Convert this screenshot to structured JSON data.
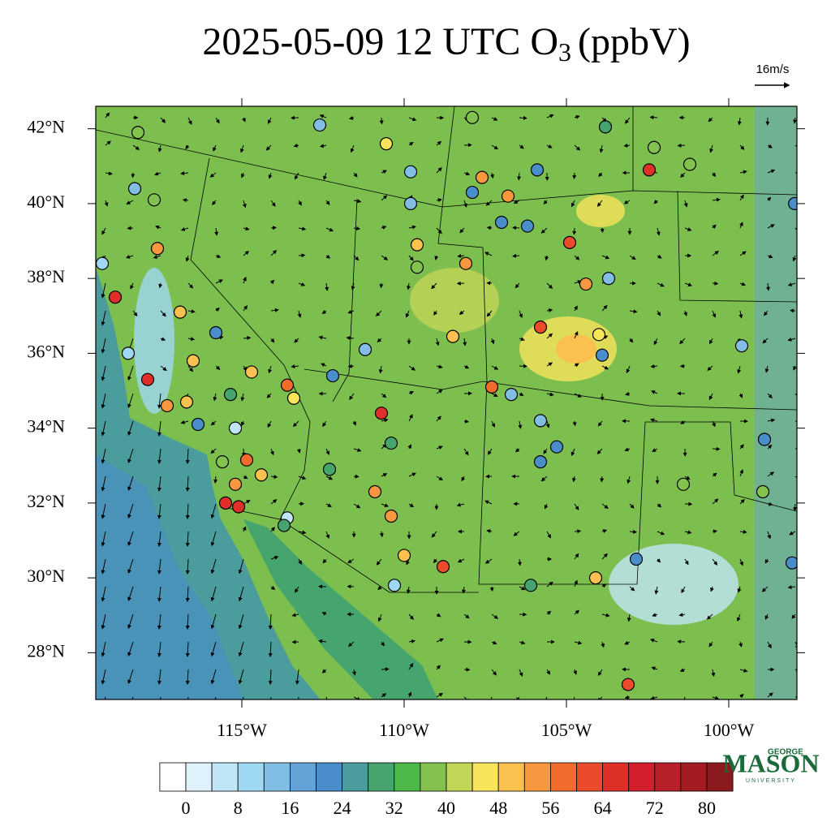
{
  "map": {
    "title": {
      "main": "2025-05-09 12 UTC O",
      "subscript": "3",
      "units": "(ppbV)"
    },
    "wind_reference": "16m/s",
    "lonlim": [
      -119.5,
      -97.9
    ],
    "latlim": [
      26.75,
      42.6
    ],
    "lonticks": [
      {
        "value": -115,
        "label": "115°W"
      },
      {
        "value": -110,
        "label": "110°W"
      },
      {
        "value": -105,
        "label": "105°W"
      },
      {
        "value": -100,
        "label": "100°W"
      }
    ],
    "latticks": [
      {
        "value": 28,
        "label": "28°N"
      },
      {
        "value": 30,
        "label": "30°N"
      },
      {
        "value": 32,
        "label": "32°N"
      },
      {
        "value": 34,
        "label": "34°N"
      },
      {
        "value": 36,
        "label": "36°N"
      },
      {
        "value": 38,
        "label": "38°N"
      },
      {
        "value": 40,
        "label": "40°N"
      },
      {
        "value": 42,
        "label": "42°N"
      }
    ],
    "colorbar": {
      "ticks": [
        0,
        8,
        16,
        24,
        32,
        40,
        48,
        56,
        64,
        72,
        80
      ],
      "colors": [
        "#ffffff",
        "#dff2fb",
        "#bfe6f7",
        "#9fd8f3",
        "#82bde4",
        "#64a3d8",
        "#4a8dcb",
        "#4b9c9c",
        "#46a46e",
        "#4cb848",
        "#84c250",
        "#c2d556",
        "#f7e45b",
        "#fac150",
        "#f7973f",
        "#f26b2d",
        "#e94b2b",
        "#de3028",
        "#d21f2b",
        "#b8202a",
        "#a31c22",
        "#8b1a1f"
      ]
    },
    "stations": [
      {
        "lon": -118.2,
        "lat": 41.9,
        "value": 36
      },
      {
        "lon": -112.6,
        "lat": 42.1,
        "value": 12
      },
      {
        "lon": -110.55,
        "lat": 41.6,
        "value": 44
      },
      {
        "lon": -107.9,
        "lat": 42.3,
        "value": 38
      },
      {
        "lon": -102.3,
        "lat": 41.5,
        "value": 38
      },
      {
        "lon": -102.45,
        "lat": 40.9,
        "value": 66
      },
      {
        "lon": -101.2,
        "lat": 41.05,
        "value": 38
      },
      {
        "lon": -103.8,
        "lat": 42.05,
        "value": 28
      },
      {
        "lon": -107.6,
        "lat": 40.7,
        "value": 54
      },
      {
        "lon": -106.8,
        "lat": 40.2,
        "value": 54
      },
      {
        "lon": -107.9,
        "lat": 40.3,
        "value": 20
      },
      {
        "lon": -105.9,
        "lat": 40.9,
        "value": 20
      },
      {
        "lon": -104.9,
        "lat": 38.96,
        "value": 62
      },
      {
        "lon": -109.8,
        "lat": 40.0,
        "value": 14
      },
      {
        "lon": -109.6,
        "lat": 38.9,
        "value": 48
      },
      {
        "lon": -109.6,
        "lat": 38.3,
        "value": 36
      },
      {
        "lon": -108.1,
        "lat": 38.4,
        "value": 52
      },
      {
        "lon": -104.4,
        "lat": 37.85,
        "value": 52
      },
      {
        "lon": -103.7,
        "lat": 38.0,
        "value": 12
      },
      {
        "lon": -104.0,
        "lat": 36.5,
        "value": 44
      },
      {
        "lon": -105.8,
        "lat": 36.7,
        "value": 62
      },
      {
        "lon": -103.9,
        "lat": 35.95,
        "value": 20
      },
      {
        "lon": -108.5,
        "lat": 36.45,
        "value": 48
      },
      {
        "lon": -111.2,
        "lat": 36.1,
        "value": 12
      },
      {
        "lon": -112.2,
        "lat": 35.4,
        "value": 20
      },
      {
        "lon": -113.6,
        "lat": 35.15,
        "value": 56
      },
      {
        "lon": -114.7,
        "lat": 35.5,
        "value": 50
      },
      {
        "lon": -113.4,
        "lat": 34.8,
        "value": 44
      },
      {
        "lon": -110.7,
        "lat": 34.4,
        "value": 64
      },
      {
        "lon": -110.4,
        "lat": 33.6,
        "value": 28
      },
      {
        "lon": -107.3,
        "lat": 35.1,
        "value": 56
      },
      {
        "lon": -106.7,
        "lat": 34.9,
        "value": 12
      },
      {
        "lon": -105.8,
        "lat": 34.2,
        "value": 12
      },
      {
        "lon": -105.3,
        "lat": 33.5,
        "value": 20
      },
      {
        "lon": -105.8,
        "lat": 33.1,
        "value": 20
      },
      {
        "lon": -110.9,
        "lat": 32.3,
        "value": 52
      },
      {
        "lon": -110.4,
        "lat": 31.65,
        "value": 52
      },
      {
        "lon": -110.0,
        "lat": 30.6,
        "value": 48
      },
      {
        "lon": -110.3,
        "lat": 29.8,
        "value": 10
      },
      {
        "lon": -108.8,
        "lat": 30.3,
        "value": 60
      },
      {
        "lon": -112.3,
        "lat": 32.9,
        "value": 28
      },
      {
        "lon": -113.6,
        "lat": 31.6,
        "value": 6
      },
      {
        "lon": -113.7,
        "lat": 31.4,
        "value": 28
      },
      {
        "lon": -115.1,
        "lat": 31.9,
        "value": 64
      },
      {
        "lon": -115.5,
        "lat": 32.0,
        "value": 64
      },
      {
        "lon": -115.2,
        "lat": 32.5,
        "value": 52
      },
      {
        "lon": -114.85,
        "lat": 33.15,
        "value": 56
      },
      {
        "lon": -114.4,
        "lat": 32.75,
        "value": 48
      },
      {
        "lon": -115.6,
        "lat": 33.1,
        "value": 36
      },
      {
        "lon": -115.2,
        "lat": 34.0,
        "value": 6
      },
      {
        "lon": -116.35,
        "lat": 34.1,
        "value": 20
      },
      {
        "lon": -117.3,
        "lat": 34.6,
        "value": 52
      },
      {
        "lon": -116.7,
        "lat": 34.7,
        "value": 48
      },
      {
        "lon": -117.9,
        "lat": 35.3,
        "value": 64
      },
      {
        "lon": -118.9,
        "lat": 37.5,
        "value": 66
      },
      {
        "lon": -116.9,
        "lat": 37.1,
        "value": 48
      },
      {
        "lon": -116.5,
        "lat": 35.8,
        "value": 48
      },
      {
        "lon": -117.6,
        "lat": 38.8,
        "value": 54
      },
      {
        "lon": -118.5,
        "lat": 36.0,
        "value": 10
      },
      {
        "lon": -119.3,
        "lat": 38.4,
        "value": 10
      },
      {
        "lon": -115.8,
        "lat": 36.55,
        "value": 20
      },
      {
        "lon": -115.35,
        "lat": 34.9,
        "value": 28
      },
      {
        "lon": -99.6,
        "lat": 36.2,
        "value": 14
      },
      {
        "lon": -98.9,
        "lat": 33.7,
        "value": 22
      },
      {
        "lon": -101.4,
        "lat": 32.5,
        "value": 36
      },
      {
        "lon": -98.95,
        "lat": 32.3,
        "value": 38
      },
      {
        "lon": -104.1,
        "lat": 30.0,
        "value": 48
      },
      {
        "lon": -103.1,
        "lat": 27.15,
        "value": 62
      },
      {
        "lon": -102.85,
        "lat": 30.5,
        "value": 20
      },
      {
        "lon": -106.1,
        "lat": 29.8,
        "value": 28
      },
      {
        "lon": -98.05,
        "lat": 30.4,
        "value": 20
      },
      {
        "lon": -97.97,
        "lat": 40.0,
        "value": 22
      },
      {
        "lon": -117.7,
        "lat": 40.1,
        "value": 38
      },
      {
        "lon": -118.3,
        "lat": 40.4,
        "value": 12
      },
      {
        "lon": -109.8,
        "lat": 40.85,
        "value": 12
      },
      {
        "lon": -107.0,
        "lat": 39.5,
        "value": 20
      },
      {
        "lon": -106.2,
        "lat": 39.4,
        "value": 20
      }
    ],
    "logo": {
      "top": "GEORGE",
      "name": "MASON",
      "bottom": "UNIVERSITY"
    }
  }
}
